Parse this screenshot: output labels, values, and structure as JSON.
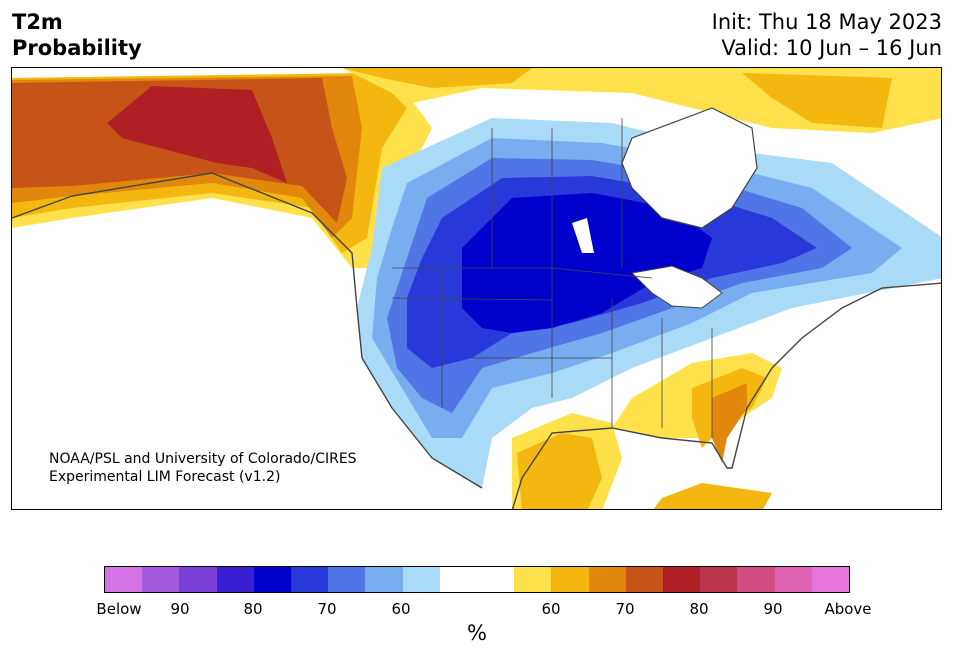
{
  "title": {
    "line1": "T2m",
    "line2": "Probability",
    "init": "Init: Thu 18 May 2023",
    "valid": "Valid: 10 Jun – 16 Jun"
  },
  "credit": {
    "line1": "NOAA/PSL and University of Colorado/CIRES",
    "line2": "Experimental LIM Forecast (v1.2)"
  },
  "colorbar": {
    "colors": [
      "#d473e6",
      "#a25ade",
      "#7a3fd7",
      "#3a1fd2",
      "#0000cc",
      "#2739d8",
      "#4f75e6",
      "#78aef0",
      "#a9daf8",
      "#ffffff",
      "#ffffff",
      "#ffe14c",
      "#f3b70f",
      "#e0870c",
      "#c65317",
      "#b01f23",
      "#bd3650",
      "#d04e84",
      "#df62b4",
      "#e676dc"
    ],
    "ticks": [
      "Below",
      "90",
      "80",
      "70",
      "60",
      "60",
      "70",
      "80",
      "90",
      "Above"
    ],
    "units": "%"
  },
  "map": {
    "colors": {
      "below_60": "#a9daf8",
      "below_70": "#78aef0",
      "below_75": "#4f75e6",
      "below_80": "#2739d8",
      "below_85": "#0000cc",
      "below_90": "#3a1fd2",
      "above_60": "#ffe14c",
      "above_65": "#f3b70f",
      "above_70": "#e0870c",
      "above_75": "#c65317",
      "above_80": "#b01f23",
      "land_outline": "#444444"
    }
  }
}
